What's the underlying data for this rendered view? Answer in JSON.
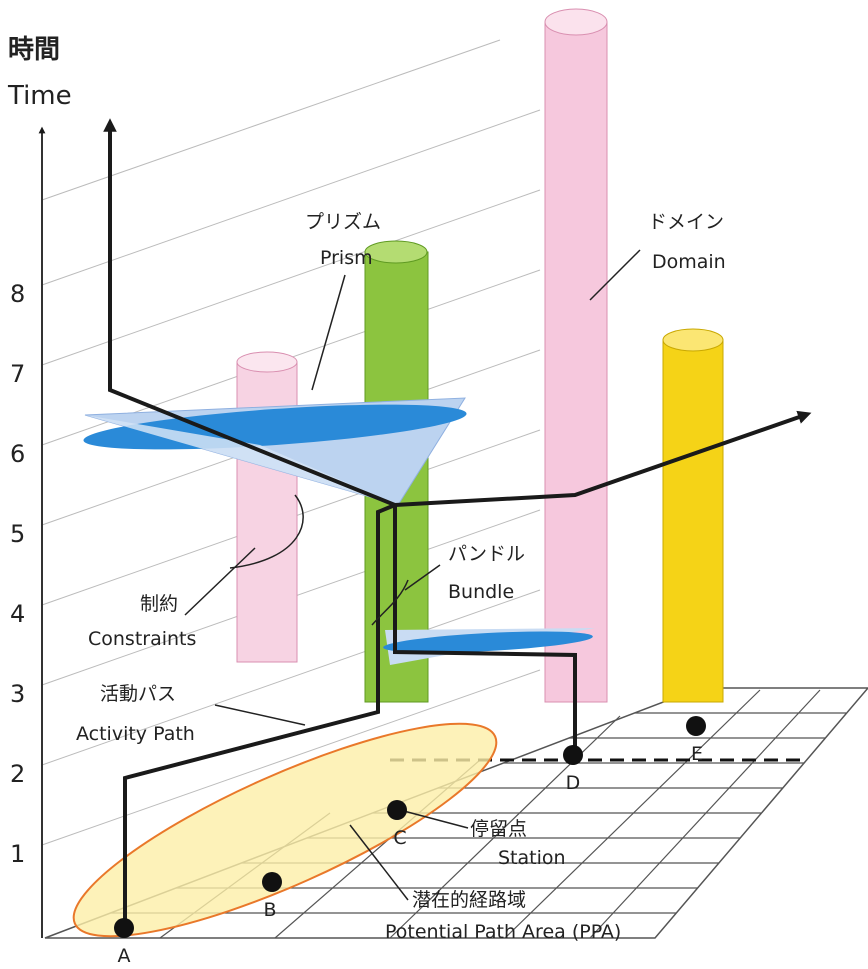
{
  "axis": {
    "title_ja": "時間",
    "title_en": "Time",
    "ticks": [
      1,
      2,
      3,
      4,
      5,
      6,
      7,
      8
    ]
  },
  "labels": {
    "prism": {
      "ja": "プリズム",
      "en": "Prism"
    },
    "domain": {
      "ja": "ドメイン",
      "en": "Domain"
    },
    "bundle": {
      "ja": "パンドル",
      "en": "Bundle"
    },
    "constraints": {
      "ja": "制約",
      "en": "Constraints"
    },
    "activity_path": {
      "ja": "活動パス",
      "en": "Activity Path"
    },
    "station": {
      "ja": "停留点",
      "en": "Station"
    },
    "ppa": {
      "ja": "潜在的経路域",
      "en": "Potential Path Area (PPA)"
    }
  },
  "points": [
    "A",
    "B",
    "C",
    "D",
    "E"
  ]
}
